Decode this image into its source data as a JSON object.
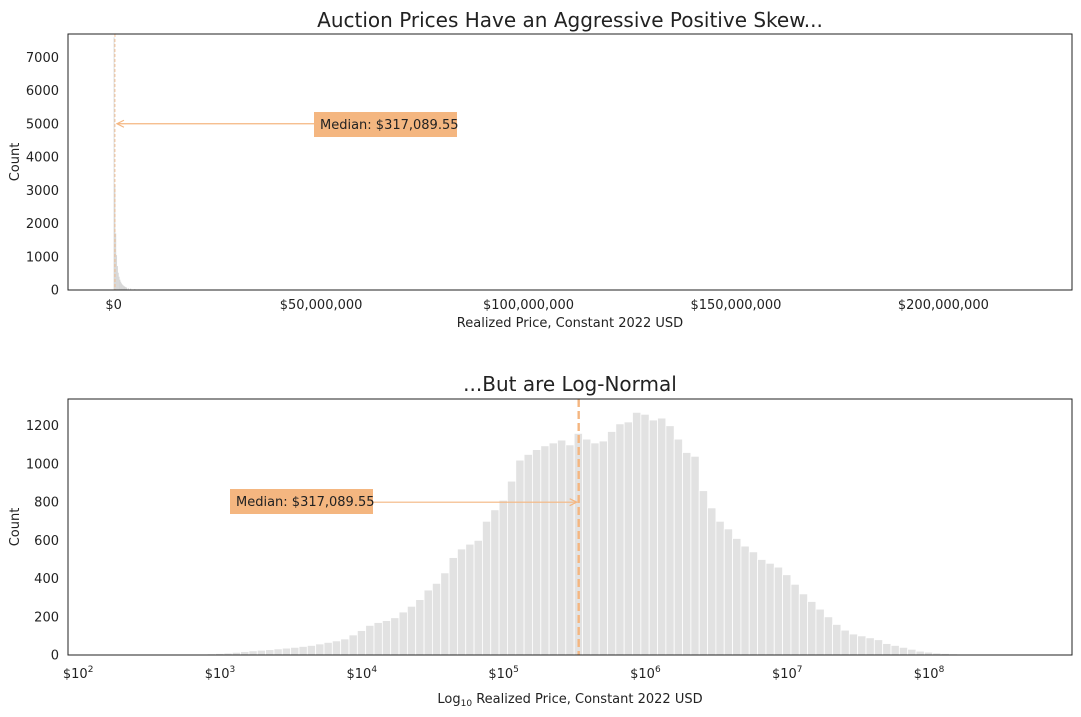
{
  "colors": {
    "accent": "#f4b680",
    "bars": "#e2e2e2",
    "text": "#222222"
  },
  "chart_data": [
    {
      "type": "bar",
      "title": "Auction Prices Have an Aggressive Positive Skew...",
      "xlabel": "Realized Price, Constant 2022 USD",
      "ylabel": "Count",
      "xlim": [
        -11000000,
        231000000
      ],
      "ylim": [
        0,
        7700
      ],
      "xticks": [
        {
          "value": 0,
          "label": "$0"
        },
        {
          "value": 50000000,
          "label": "$50,000,000"
        },
        {
          "value": 100000000,
          "label": "$100,000,000"
        },
        {
          "value": 150000000,
          "label": "$150,000,000"
        },
        {
          "value": 200000000,
          "label": "$200,000,000"
        }
      ],
      "yticks": [
        0,
        1000,
        2000,
        3000,
        4000,
        5000,
        6000,
        7000
      ],
      "bin_width": 200000,
      "bins": [
        {
          "x": 0,
          "y": 7600
        },
        {
          "x": 200000,
          "y": 3150
        },
        {
          "x": 400000,
          "y": 1700
        },
        {
          "x": 600000,
          "y": 1050
        },
        {
          "x": 800000,
          "y": 720
        },
        {
          "x": 1000000,
          "y": 520
        },
        {
          "x": 1200000,
          "y": 400
        },
        {
          "x": 1400000,
          "y": 310
        },
        {
          "x": 1600000,
          "y": 250
        },
        {
          "x": 1800000,
          "y": 200
        },
        {
          "x": 2000000,
          "y": 165
        },
        {
          "x": 2200000,
          "y": 140
        },
        {
          "x": 2400000,
          "y": 118
        },
        {
          "x": 2600000,
          "y": 100
        },
        {
          "x": 2800000,
          "y": 86
        },
        {
          "x": 3000000,
          "y": 75
        },
        {
          "x": 3400000,
          "y": 60
        },
        {
          "x": 4000000,
          "y": 45
        },
        {
          "x": 5000000,
          "y": 30
        },
        {
          "x": 6000000,
          "y": 20
        },
        {
          "x": 7000000,
          "y": 14
        },
        {
          "x": 8000000,
          "y": 10
        },
        {
          "x": 9000000,
          "y": 7
        },
        {
          "x": 10000000,
          "y": 5
        }
      ],
      "median_line": 317089.55,
      "annotation": {
        "text": "Median: $317,089.55",
        "x": 317089.55,
        "y": 5000
      }
    },
    {
      "type": "bar",
      "title": "...But are Log-Normal",
      "xlabel_parts": [
        "Log",
        "10",
        " Realized Price, Constant 2022 USD"
      ],
      "ylabel": "Count",
      "xlim": [
        1.9,
        8.98
      ],
      "ylim": [
        0,
        1340
      ],
      "log_scale": true,
      "xticks": [
        {
          "value": 2,
          "base": "$10",
          "exp": "2"
        },
        {
          "value": 3,
          "base": "$10",
          "exp": "3"
        },
        {
          "value": 4,
          "base": "$10",
          "exp": "4"
        },
        {
          "value": 5,
          "base": "$10",
          "exp": "5"
        },
        {
          "value": 6,
          "base": "$10",
          "exp": "6"
        },
        {
          "value": 7,
          "base": "$10",
          "exp": "7"
        },
        {
          "value": 8,
          "base": "$10",
          "exp": "8"
        }
      ],
      "yticks": [
        0,
        200,
        400,
        600,
        800,
        1000,
        1200
      ],
      "bin_start": 2.0,
      "bin_width": 0.0588,
      "counts": [
        0,
        0,
        1,
        0,
        0,
        1,
        2,
        3,
        2,
        2,
        3,
        4,
        4,
        3,
        4,
        6,
        8,
        10,
        14,
        18,
        22,
        25,
        28,
        32,
        36,
        40,
        45,
        50,
        58,
        66,
        74,
        84,
        105,
        128,
        155,
        170,
        180,
        195,
        225,
        255,
        290,
        340,
        375,
        430,
        510,
        555,
        580,
        600,
        700,
        760,
        810,
        910,
        1020,
        1050,
        1075,
        1095,
        1110,
        1125,
        1100,
        1160,
        1130,
        1110,
        1120,
        1170,
        1210,
        1220,
        1270,
        1260,
        1230,
        1240,
        1200,
        1130,
        1060,
        1040,
        860,
        770,
        700,
        660,
        610,
        570,
        540,
        500,
        480,
        460,
        420,
        370,
        320,
        280,
        240,
        200,
        160,
        130,
        110,
        100,
        90,
        80,
        60,
        50,
        40,
        30,
        20,
        15,
        10,
        8,
        6,
        4,
        3,
        2,
        1
      ],
      "median_line": 5.5012,
      "annotation": {
        "text": "Median: $317,089.55",
        "x": 5.5012,
        "y": 800
      }
    }
  ]
}
